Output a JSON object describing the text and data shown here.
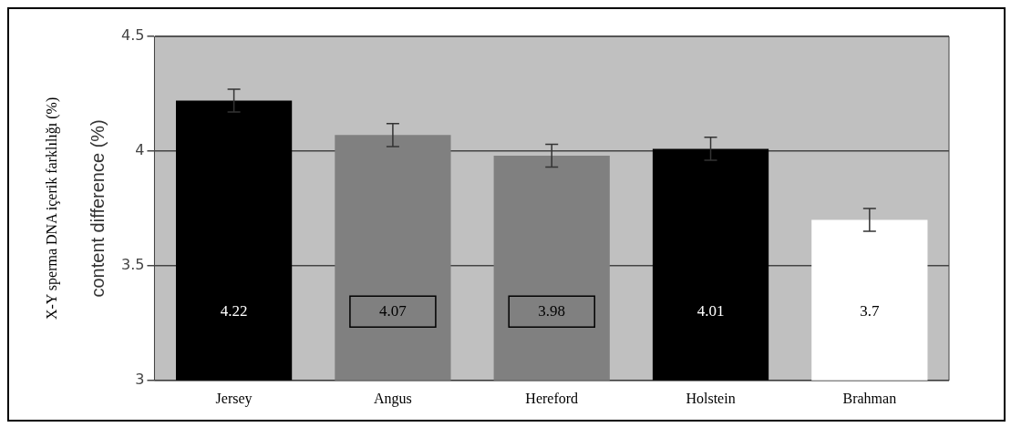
{
  "chart_data": {
    "type": "bar",
    "ylabel": "X-Y sperma DNA içerik farklılığı (%)",
    "annotations": [
      "content difference (%)"
    ],
    "categories": [
      "Jersey",
      "Angus",
      "Hereford",
      "Holstein",
      "Brahman"
    ],
    "values": [
      4.22,
      4.07,
      3.98,
      4.01,
      3.7
    ],
    "colors": [
      "#000000",
      "#808080",
      "#808080",
      "#000000",
      "#ffffff"
    ],
    "errors": [
      0.05,
      0.05,
      0.05,
      0.05,
      0.05
    ],
    "ylim": [
      3,
      4.5
    ],
    "yticks": [
      3,
      3.5,
      4,
      4.5
    ],
    "grid": "y",
    "data_labels": true
  }
}
